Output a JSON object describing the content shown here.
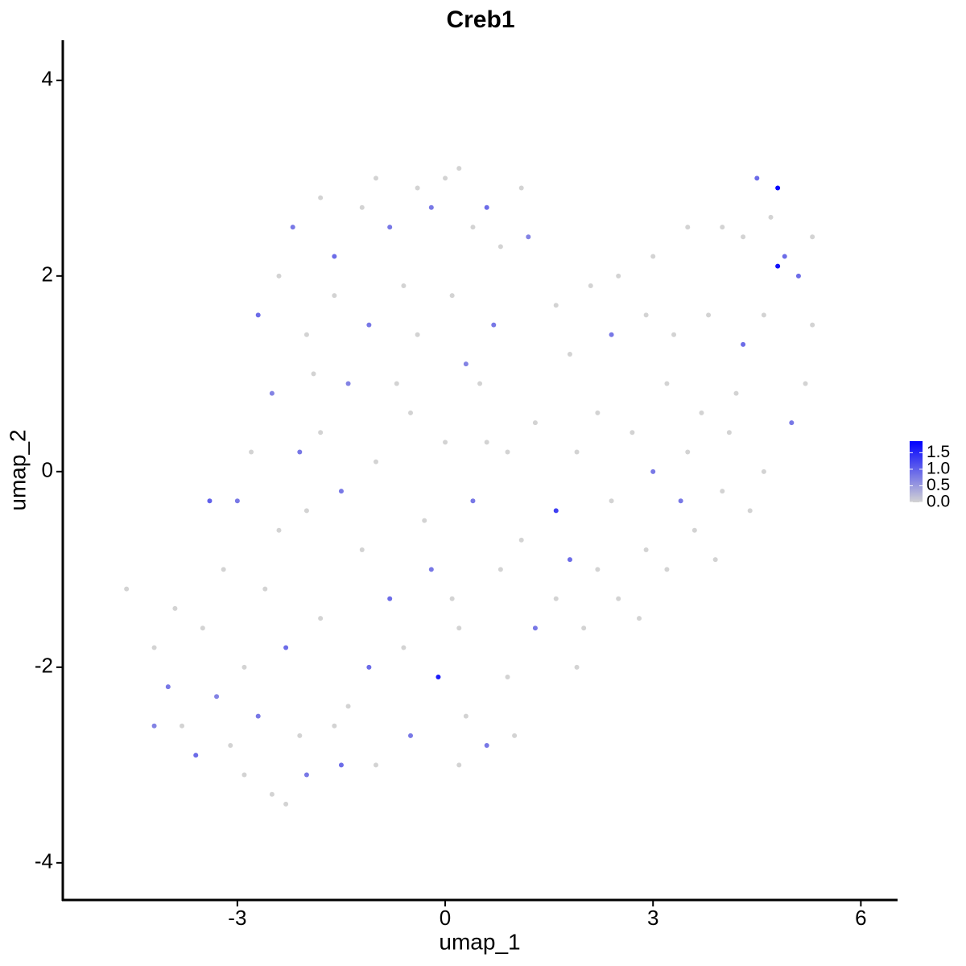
{
  "chart_data": {
    "type": "scatter",
    "title": "Creb1",
    "x_label": "umap_1",
    "y_label": "umap_2",
    "xlim": [
      -5.52,
      6.53
    ],
    "ylim": [
      -4.38,
      4.41
    ],
    "xticks": [
      -3,
      0,
      3,
      6
    ],
    "yticks": [
      4,
      2,
      0,
      -2,
      -4
    ],
    "x": [
      -4.6,
      -4.2,
      -4.0,
      -3.8,
      -3.6,
      -3.5,
      -3.3,
      -3.2,
      -3.0,
      -3.4,
      -2.9,
      -2.7,
      -2.5,
      -2.3,
      -2.1,
      -2.0,
      -2.6,
      -2.8,
      -2.5,
      -2.7,
      -2.4,
      -2.2,
      -2.0,
      -1.8,
      -1.6,
      -1.4,
      -1.2,
      -1.0,
      -0.8,
      -0.6,
      -0.4,
      -0.2,
      0.0,
      0.2,
      0.4,
      0.6,
      0.8,
      1.1,
      1.2,
      -1.8,
      -1.5,
      -1.2,
      -1.0,
      -0.8,
      -0.5,
      -0.3,
      0.0,
      -0.2,
      0.2,
      0.5,
      0.7,
      0.9,
      1.1,
      1.3,
      1.6,
      -0.1,
      0.3,
      0.6,
      0.9,
      1.0,
      0.2,
      -0.5,
      -1.0,
      -1.4,
      -1.5,
      -1.8,
      1.3,
      1.6,
      1.9,
      1.8,
      2.2,
      2.5,
      2.8,
      3.2,
      3.6,
      3.4,
      4.0,
      4.6,
      5.0,
      5.2,
      5.3,
      5.1,
      5.3,
      4.9,
      4.8,
      4.8,
      4.5,
      4.7,
      4.3,
      4.0,
      3.5,
      3.0,
      2.5,
      2.1,
      1.6,
      1.8,
      2.4,
      2.9,
      3.3,
      3.8,
      4.3,
      4.6,
      4.2,
      3.7,
      3.2,
      2.7,
      2.2,
      1.9,
      2.4,
      3.0,
      3.5,
      4.1,
      4.4,
      3.9,
      2.9,
      2.0,
      -3.9,
      -4.2,
      -3.1,
      -2.9,
      -2.3,
      -2.0,
      -2.4,
      -2.1,
      -1.9,
      -1.6,
      -1.1,
      -0.7,
      -0.4,
      0.1,
      0.3,
      0.6,
      0.4,
      0.8,
      0.1,
      -0.6,
      -1.1,
      -1.6
    ],
    "y": [
      -1.2,
      -1.8,
      -2.2,
      -2.6,
      -2.9,
      -1.6,
      -2.3,
      -1.0,
      -0.3,
      -0.3,
      -2.0,
      -2.5,
      -3.3,
      -1.8,
      -2.7,
      -3.1,
      -1.2,
      0.2,
      0.8,
      1.6,
      2.0,
      2.5,
      1.4,
      2.8,
      2.2,
      0.9,
      2.7,
      3.0,
      2.5,
      1.9,
      2.9,
      2.7,
      3.0,
      3.1,
      2.5,
      2.7,
      2.3,
      2.9,
      2.4,
      0.4,
      -0.2,
      -0.8,
      0.1,
      -1.3,
      0.6,
      -0.5,
      0.3,
      -1.0,
      -1.6,
      0.9,
      1.5,
      0.2,
      -0.7,
      0.5,
      -0.4,
      -2.1,
      -2.5,
      -2.8,
      -2.1,
      -2.7,
      -3.0,
      -2.7,
      -3.0,
      -2.4,
      -3.0,
      -1.5,
      -1.6,
      -1.3,
      -2.0,
      -0.9,
      -1.0,
      -1.3,
      -1.5,
      -1.0,
      -0.6,
      -0.3,
      -0.2,
      0.0,
      0.5,
      0.9,
      1.5,
      2.0,
      2.4,
      2.2,
      2.9,
      2.1,
      3.0,
      2.6,
      2.4,
      2.5,
      2.5,
      2.2,
      2.0,
      1.9,
      1.7,
      1.2,
      1.4,
      1.6,
      1.4,
      1.6,
      1.3,
      1.6,
      0.8,
      0.6,
      0.9,
      0.4,
      0.6,
      0.2,
      -0.3,
      0.0,
      0.2,
      0.4,
      -0.4,
      -0.9,
      -0.8,
      -1.6,
      -1.4,
      -2.6,
      -2.8,
      -3.1,
      -3.4,
      -0.4,
      -0.6,
      0.2,
      1.0,
      1.8,
      1.5,
      0.9,
      1.4,
      1.8,
      1.1,
      0.3,
      -0.3,
      -1.0,
      -1.3,
      -1.8,
      -2.0,
      -2.6
    ],
    "values": [
      0,
      0,
      0.8,
      0,
      0.9,
      0,
      0.7,
      0,
      0.8,
      1.0,
      0,
      0.8,
      0,
      0.9,
      0,
      0.8,
      0,
      0,
      0.7,
      0.9,
      0,
      0.8,
      0,
      0,
      0.9,
      0.7,
      0,
      0,
      0.8,
      0,
      0,
      0.8,
      0,
      0,
      0,
      0.9,
      0,
      0,
      0.7,
      0,
      0.8,
      0,
      0,
      0.9,
      0,
      0,
      0,
      0.8,
      0,
      0,
      0.8,
      0,
      0,
      0,
      1.3,
      1.6,
      0,
      0.8,
      0,
      0,
      0,
      0.8,
      0,
      0,
      0.9,
      0,
      0.8,
      0,
      0,
      0.9,
      0,
      0,
      0,
      0,
      0,
      0.8,
      0,
      0,
      0.8,
      0,
      0,
      0.9,
      0,
      0.9,
      1.8,
      1.7,
      0.9,
      0,
      0,
      0,
      0,
      0,
      0,
      0,
      0,
      0,
      0.8,
      0,
      0,
      0,
      0.9,
      0,
      0,
      0,
      0,
      0,
      0,
      0,
      0,
      0.8,
      0,
      0,
      0,
      0,
      0,
      0,
      0,
      0.7,
      0,
      0,
      0,
      0,
      0,
      0.8,
      0,
      0,
      0.8,
      0,
      0,
      0,
      0.7,
      0,
      0.8,
      0,
      0,
      0,
      0.9,
      0
    ],
    "colors": [
      "#d3d3d3",
      "#0000ff"
    ],
    "clim": [
      0,
      1.85
    ],
    "cticks": [
      {
        "value": 0,
        "label": "0.0"
      },
      {
        "value": 0.5,
        "label": "0.5"
      },
      {
        "value": 1,
        "label": "1.0"
      },
      {
        "value": 1.5,
        "label": "1.5"
      }
    ]
  }
}
